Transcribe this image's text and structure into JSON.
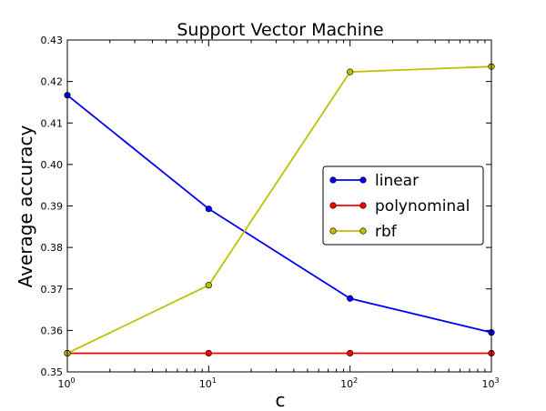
{
  "chart_data": {
    "type": "line",
    "title": "Support Vector Machine",
    "xlabel": "c",
    "ylabel": "Average accuracy",
    "x": [
      1,
      10,
      100,
      1000
    ],
    "xscale": "log",
    "x_tick_labels": [
      {
        "base": "10",
        "exp": "0"
      },
      {
        "base": "10",
        "exp": "1"
      },
      {
        "base": "10",
        "exp": "2"
      },
      {
        "base": "10",
        "exp": "3"
      }
    ],
    "ylim": [
      0.35,
      0.43
    ],
    "y_ticks": [
      0.35,
      0.36,
      0.37,
      0.38,
      0.39,
      0.4,
      0.41,
      0.42,
      0.43
    ],
    "y_tick_labels": [
      "0.35",
      "0.36",
      "0.37",
      "0.38",
      "0.39",
      "0.40",
      "0.41",
      "0.42",
      "0.43"
    ],
    "grid": false,
    "legend_position": "center-right",
    "series": [
      {
        "name": "linear",
        "color": "#0000ff",
        "values": [
          0.4167,
          0.3893,
          0.3677,
          0.3595
        ]
      },
      {
        "name": "polynominal",
        "color": "#ff0000",
        "values": [
          0.3545,
          0.3545,
          0.3545,
          0.3545
        ]
      },
      {
        "name": "rbf",
        "color": "#bfbf00",
        "values": [
          0.3545,
          0.3709,
          0.4223,
          0.4236
        ]
      }
    ]
  }
}
